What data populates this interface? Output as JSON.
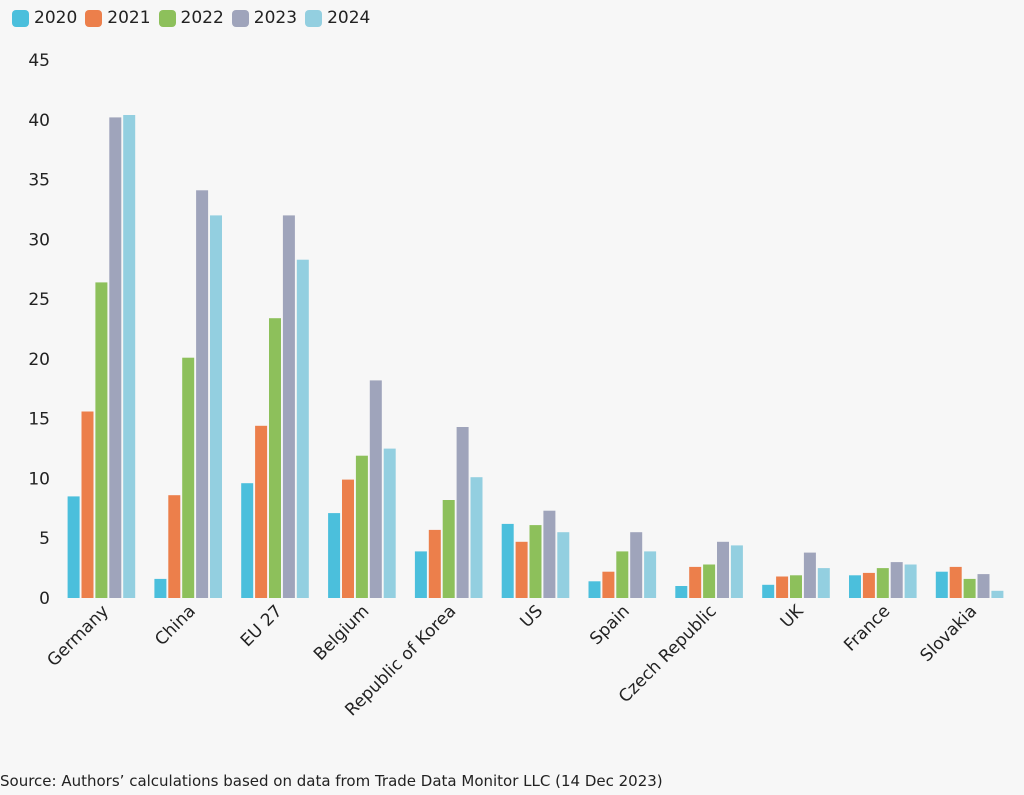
{
  "chart_data": {
    "type": "bar",
    "categories": [
      "Germany",
      "China",
      "EU 27",
      "Belgium",
      "Republic of Korea",
      "US",
      "Spain",
      "Czech Republic",
      "UK",
      "France",
      "Slovakia"
    ],
    "series": [
      {
        "name": "2020",
        "color": "#4bbfdc",
        "values": [
          8.5,
          1.6,
          9.6,
          7.1,
          3.9,
          6.2,
          1.4,
          1.0,
          1.1,
          1.9,
          2.2
        ]
      },
      {
        "name": "2021",
        "color": "#ec7f4b",
        "values": [
          15.6,
          8.6,
          14.4,
          9.9,
          5.7,
          4.7,
          2.2,
          2.6,
          1.8,
          2.1,
          2.6
        ]
      },
      {
        "name": "2022",
        "color": "#8dc05b",
        "values": [
          26.4,
          20.1,
          23.4,
          11.9,
          8.2,
          6.1,
          3.9,
          2.8,
          1.9,
          2.5,
          1.6
        ]
      },
      {
        "name": "2023",
        "color": "#9fa4bb",
        "values": [
          40.2,
          34.1,
          32.0,
          18.2,
          14.3,
          7.3,
          5.5,
          4.7,
          3.8,
          3.0,
          2.0
        ]
      },
      {
        "name": "2024",
        "color": "#93cfe0",
        "values": [
          40.4,
          32.0,
          28.3,
          12.5,
          10.1,
          5.5,
          3.9,
          4.4,
          2.5,
          2.8,
          0.6
        ]
      }
    ],
    "yticks": [
      0,
      5,
      10,
      15,
      20,
      25,
      30,
      35,
      40,
      45
    ],
    "ylim": [
      0,
      45
    ],
    "grid": false,
    "legend_position": "top-left"
  },
  "source": "Source: Authors’ calculations based on data from Trade Data Monitor LLC (14 Dec 2023)"
}
